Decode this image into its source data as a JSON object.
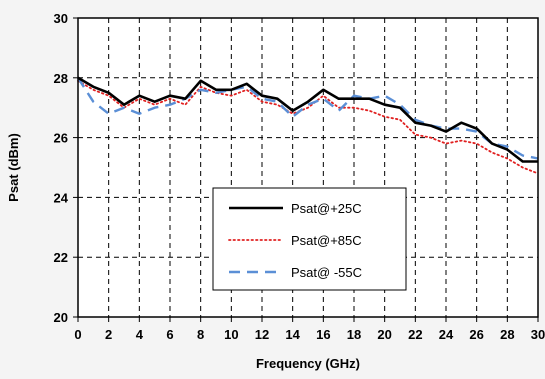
{
  "chart_data": {
    "type": "line",
    "title": "",
    "xlabel": "Frequency (GHz)",
    "ylabel": "Psat (dBm)",
    "xlim": [
      0,
      30
    ],
    "ylim": [
      20,
      30
    ],
    "xticks": [
      0,
      2,
      4,
      6,
      8,
      10,
      12,
      14,
      16,
      18,
      20,
      22,
      24,
      26,
      28,
      30
    ],
    "yticks": [
      20,
      22,
      24,
      26,
      28,
      30
    ],
    "grid": true,
    "legend_position": "bottom-center",
    "series": [
      {
        "name": "Psat@+25C",
        "color": "#000000",
        "style": "solid",
        "x": [
          0,
          1,
          2,
          3,
          4,
          5,
          6,
          7,
          8,
          9,
          10,
          11,
          12,
          13,
          14,
          15,
          16,
          17,
          18,
          19,
          20,
          21,
          22,
          23,
          24,
          25,
          26,
          27,
          28,
          29,
          30
        ],
        "y": [
          28.0,
          27.7,
          27.5,
          27.1,
          27.4,
          27.2,
          27.4,
          27.3,
          27.9,
          27.6,
          27.6,
          27.8,
          27.4,
          27.3,
          26.9,
          27.2,
          27.6,
          27.3,
          27.3,
          27.3,
          27.1,
          27.0,
          26.5,
          26.4,
          26.2,
          26.5,
          26.3,
          25.8,
          25.6,
          25.2,
          25.2
        ]
      },
      {
        "name": "Psat@+85C",
        "color": "#e02020",
        "style": "dotted",
        "x": [
          0,
          1,
          2,
          3,
          4,
          5,
          6,
          7,
          8,
          9,
          10,
          11,
          12,
          13,
          14,
          15,
          16,
          17,
          18,
          19,
          20,
          21,
          22,
          23,
          24,
          25,
          26,
          27,
          28,
          29,
          30
        ],
        "y": [
          27.9,
          27.6,
          27.4,
          27.0,
          27.3,
          27.1,
          27.3,
          27.1,
          27.7,
          27.5,
          27.4,
          27.6,
          27.2,
          27.1,
          26.8,
          27.0,
          27.4,
          27.0,
          27.0,
          26.9,
          26.7,
          26.6,
          26.1,
          26.0,
          25.8,
          25.9,
          25.8,
          25.5,
          25.3,
          25.0,
          24.8
        ]
      },
      {
        "name": "Psat@ -55C",
        "color": "#5b8fd6",
        "style": "dashed",
        "x": [
          0,
          1,
          2,
          3,
          4,
          5,
          6,
          7,
          8,
          9,
          10,
          11,
          12,
          13,
          14,
          15,
          16,
          17,
          18,
          19,
          20,
          21,
          22,
          23,
          24,
          25,
          26,
          27,
          28,
          29,
          30
        ],
        "y": [
          28.0,
          27.2,
          26.8,
          27.0,
          26.8,
          27.0,
          27.1,
          27.3,
          27.6,
          27.5,
          27.6,
          27.7,
          27.3,
          27.2,
          26.7,
          27.1,
          27.3,
          26.9,
          27.4,
          27.3,
          27.4,
          27.1,
          26.6,
          26.4,
          26.3,
          26.3,
          26.2,
          25.8,
          25.7,
          25.4,
          25.3
        ]
      }
    ]
  }
}
